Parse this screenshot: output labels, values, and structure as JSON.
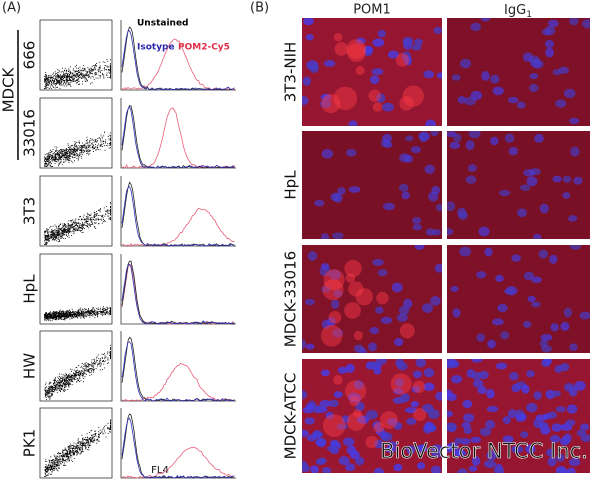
{
  "panel_a": {
    "label": "(A)",
    "group_label": "MDCK",
    "rows": [
      "666",
      "33016",
      "3T3",
      "HpL",
      "HW",
      "PK1"
    ],
    "legend": [
      "Unstained",
      "Isotype",
      "POM2-Cy5"
    ],
    "x_axis_label": "FL4"
  },
  "panel_b": {
    "label": "(B)",
    "columns": [
      {
        "text": "POM1"
      },
      {
        "text": "IgG",
        "subscript": "1"
      }
    ],
    "rows": [
      "3T3-NIH",
      "HpL",
      "MDCK-33016",
      "MDCK-ATCC"
    ],
    "watermark": "BioVector NTCC Inc."
  }
}
